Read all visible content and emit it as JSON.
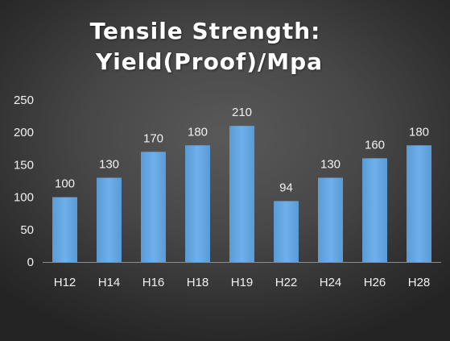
{
  "chart_data": {
    "type": "bar",
    "title": "Tensile Strength:",
    "subtitle": "Yield(Proof)/Mpa",
    "categories": [
      "H12",
      "H14",
      "H16",
      "H18",
      "H19",
      "H22",
      "H24",
      "H26",
      "H28"
    ],
    "values": [
      100,
      130,
      170,
      180,
      210,
      94,
      130,
      160,
      180
    ],
    "data_labels": [
      "100",
      "130",
      "170",
      "180",
      "210",
      "94",
      "130",
      "160",
      "180"
    ],
    "yticks": [
      "0",
      "50",
      "100",
      "150",
      "200",
      "250"
    ],
    "ylim": [
      0,
      250
    ],
    "xlabel": "",
    "ylabel": "",
    "grid": false,
    "legend": "none",
    "bar_color": "#5b9bd5",
    "bar_color_light": "#6fb0ea",
    "axis_color": "#8c8c8c"
  }
}
